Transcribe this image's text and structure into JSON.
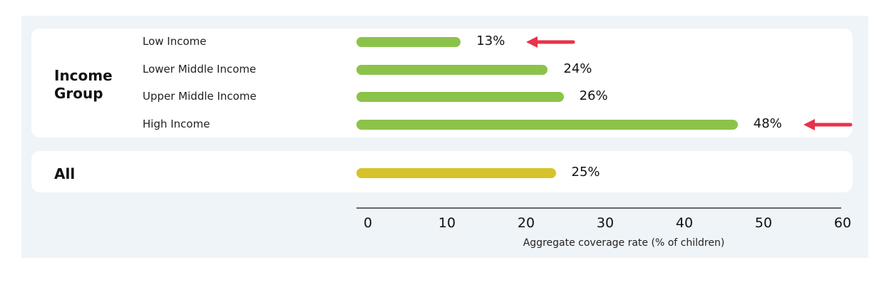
{
  "chart_data": {
    "type": "bar",
    "orientation": "horizontal",
    "groups": [
      {
        "label": "Income Group",
        "categories": [
          "Low Income",
          "Lower Middle Income",
          "Upper Middle Income",
          "High Income"
        ],
        "values": [
          13,
          24,
          26,
          48
        ],
        "value_labels": [
          "13%",
          "24%",
          "26%",
          "48%"
        ],
        "color": "#8bc34a",
        "highlighted": [
          "Low Income",
          "High Income"
        ]
      },
      {
        "label": "All",
        "categories": [
          ""
        ],
        "values": [
          25
        ],
        "value_labels": [
          "25%"
        ],
        "color": "#d6c22a"
      }
    ],
    "xlabel": "Aggregate coverage rate (% of children)",
    "xlim": [
      0,
      60
    ],
    "xticks": [
      "0",
      "10",
      "20",
      "30",
      "40",
      "50",
      "60"
    ],
    "arrow_color": "#e8334a"
  }
}
